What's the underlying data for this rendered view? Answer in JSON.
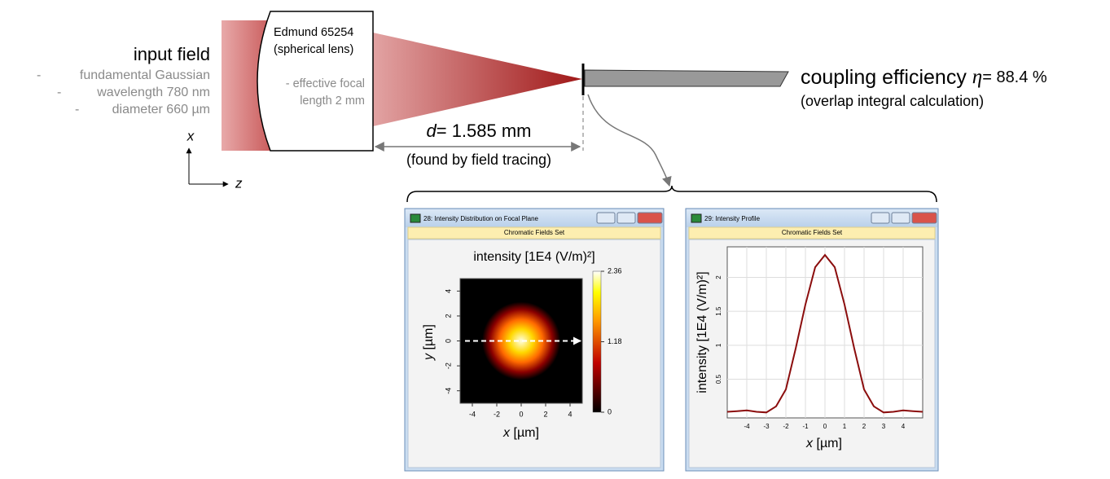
{
  "input_field": {
    "title": "input field",
    "items": [
      "fundamental Gaussian",
      "wavelength 780 nm",
      "diameter 660 µm"
    ]
  },
  "lens": {
    "lines": [
      "Edmund 65254",
      "(spherical lens)",
      "- effective focal",
      "length 2 mm"
    ]
  },
  "distance": {
    "symbol": "d",
    "value": "= 1.585 mm",
    "note": "(found by field tracing)"
  },
  "axes": {
    "x": "x",
    "z": "z"
  },
  "coupling": {
    "label": "coupling efficiency",
    "symbol": "η",
    "value": "= 88.4 %",
    "note": "(overlap integral calculation)"
  },
  "windows": [
    {
      "title": "28: Intensity Distribution on Focal Plane",
      "subtitle": "Chromatic Fields Set",
      "chart_data": {
        "type": "heatmap",
        "title": "intensity [1E4 (V/m)²]",
        "x_label": {
          "var": "x",
          "unit": "[µm]"
        },
        "y_label": {
          "var": "y",
          "unit": "[µm]"
        },
        "xlim": [
          -5,
          5
        ],
        "ylim": [
          -5,
          5
        ],
        "xticks": [
          -4,
          -2,
          0,
          2,
          4
        ],
        "yticks": [
          -4,
          -2,
          0,
          2,
          4
        ],
        "clim": [
          0,
          2.36
        ],
        "cticks": [
          0,
          1.18,
          2.36
        ]
      }
    },
    {
      "title": "29: Intensity Profile",
      "subtitle": "Chromatic Fields Set",
      "chart_data": {
        "type": "line",
        "x_label": {
          "var": "x",
          "unit": "[µm]"
        },
        "y_label": "intensity [1E4 (V/m)²]",
        "xlim": [
          -5,
          5
        ],
        "ylim": [
          -0.07,
          2.45
        ],
        "xticks": [
          -4,
          -3,
          -2,
          -1,
          0,
          1,
          2,
          3,
          4
        ],
        "yticks": [
          0.5,
          1,
          1.5,
          2
        ],
        "grid": true,
        "color": "#8b0d0d",
        "x": [
          -5,
          -4.5,
          -4,
          -3.5,
          -3,
          -2.5,
          -2,
          -1.5,
          -1,
          -0.5,
          0,
          0.5,
          1,
          1.5,
          2,
          2.5,
          3,
          3.5,
          4,
          4.5,
          5
        ],
        "values": [
          0.02,
          0.03,
          0.04,
          0.02,
          0.01,
          0.1,
          0.35,
          0.95,
          1.6,
          2.15,
          2.33,
          2.15,
          1.6,
          0.95,
          0.35,
          0.1,
          0.01,
          0.02,
          0.04,
          0.03,
          0.02
        ]
      }
    }
  ]
}
